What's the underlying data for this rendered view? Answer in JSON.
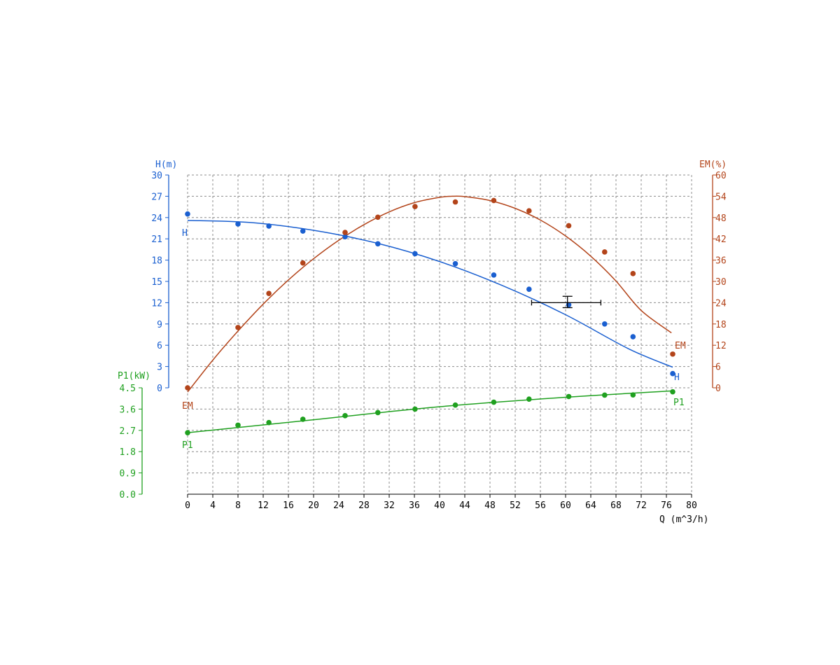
{
  "colors": {
    "h": "#1a5fd0",
    "em": "#b3441a",
    "p1": "#1fa01f",
    "axis": "#000000",
    "grid": "#8c8c8c"
  },
  "chart_data": {
    "type": "scatter",
    "x_axis": {
      "label": "Q (m^3/h)",
      "range": [
        0,
        80
      ],
      "ticks": [
        0,
        4,
        8,
        12,
        16,
        20,
        24,
        28,
        32,
        36,
        40,
        44,
        48,
        52,
        56,
        60,
        64,
        68,
        72,
        76,
        80
      ]
    },
    "axes": {
      "h": {
        "label": "H(m)",
        "range": [
          0,
          30
        ],
        "ticks": [
          "0",
          "3",
          "6",
          "9",
          "12",
          "15",
          "18",
          "21",
          "24",
          "27",
          "30"
        ]
      },
      "em": {
        "label": "EM(%)",
        "range": [
          0,
          60
        ],
        "ticks": [
          "0",
          "6",
          "12",
          "18",
          "24",
          "30",
          "36",
          "42",
          "48",
          "54",
          "60"
        ]
      },
      "p1": {
        "label": "P1(kW)",
        "range": [
          0,
          4.5
        ],
        "ticks": [
          "0.0",
          "0.9",
          "1.8",
          "2.7",
          "3.6",
          "4.5"
        ]
      }
    },
    "series": [
      {
        "name": "H",
        "axis": "h",
        "points": [
          [
            0,
            24.5
          ],
          [
            8,
            23.1
          ],
          [
            12.9,
            22.8
          ],
          [
            18.3,
            22.1
          ],
          [
            25,
            21.3
          ],
          [
            30.2,
            20.3
          ],
          [
            36.1,
            18.9
          ],
          [
            42.5,
            17.5
          ],
          [
            48.6,
            15.9
          ],
          [
            54.2,
            13.9
          ],
          [
            60.5,
            11.7
          ],
          [
            66.2,
            9.0
          ],
          [
            70.7,
            7.2
          ],
          [
            77,
            2.0
          ]
        ],
        "curve": [
          [
            0,
            23.6
          ],
          [
            10,
            23.3
          ],
          [
            20,
            22.2
          ],
          [
            30,
            20.4
          ],
          [
            40,
            17.8
          ],
          [
            50,
            14.4
          ],
          [
            60,
            10.3
          ],
          [
            70,
            5.5
          ],
          [
            77,
            2.9
          ]
        ]
      },
      {
        "name": "EM",
        "axis": "em",
        "points": [
          [
            0,
            0
          ],
          [
            8,
            17
          ],
          [
            12.9,
            26.6
          ],
          [
            18.3,
            35.2
          ],
          [
            25,
            43.8
          ],
          [
            30.2,
            48.1
          ],
          [
            36.1,
            51.1
          ],
          [
            42.5,
            52.4
          ],
          [
            48.6,
            52.8
          ],
          [
            54.2,
            49.9
          ],
          [
            60.5,
            45.7
          ],
          [
            66.2,
            38.3
          ],
          [
            70.7,
            32.2
          ],
          [
            77,
            9.5
          ]
        ],
        "curve": [
          [
            0,
            -1.2
          ],
          [
            4,
            7.8
          ],
          [
            8,
            16
          ],
          [
            12,
            23.6
          ],
          [
            16,
            30.4
          ],
          [
            20,
            36.4
          ],
          [
            24,
            41.6
          ],
          [
            28,
            46
          ],
          [
            32,
            49.6
          ],
          [
            36,
            52.2
          ],
          [
            40,
            53.7
          ],
          [
            42,
            54
          ],
          [
            44,
            53.9
          ],
          [
            48,
            52.8
          ],
          [
            52,
            50.6
          ],
          [
            56,
            47.3
          ],
          [
            60,
            42.8
          ],
          [
            64,
            37.1
          ],
          [
            68,
            30.1
          ],
          [
            72,
            21.8
          ],
          [
            76.8,
            15.5
          ]
        ]
      },
      {
        "name": "P1",
        "axis": "p1",
        "points": [
          [
            0,
            2.6
          ],
          [
            8,
            2.92
          ],
          [
            12.9,
            3.03
          ],
          [
            18.3,
            3.17
          ],
          [
            25,
            3.32
          ],
          [
            30.2,
            3.45
          ],
          [
            36.1,
            3.6
          ],
          [
            42.5,
            3.77
          ],
          [
            48.6,
            3.89
          ],
          [
            54.2,
            4.02
          ],
          [
            60.5,
            4.13
          ],
          [
            66.2,
            4.19
          ],
          [
            70.7,
            4.2
          ],
          [
            77,
            4.33
          ]
        ],
        "curve": [
          [
            0,
            2.6
          ],
          [
            20,
            3.15
          ],
          [
            40,
            3.7
          ],
          [
            60,
            4.1
          ],
          [
            77,
            4.37
          ]
        ]
      }
    ],
    "operating_point": {
      "q": 60.3,
      "h": 12.0,
      "q_range": [
        54.6,
        65.6
      ],
      "h_range": [
        11.3,
        12.9
      ]
    },
    "grid": true
  }
}
